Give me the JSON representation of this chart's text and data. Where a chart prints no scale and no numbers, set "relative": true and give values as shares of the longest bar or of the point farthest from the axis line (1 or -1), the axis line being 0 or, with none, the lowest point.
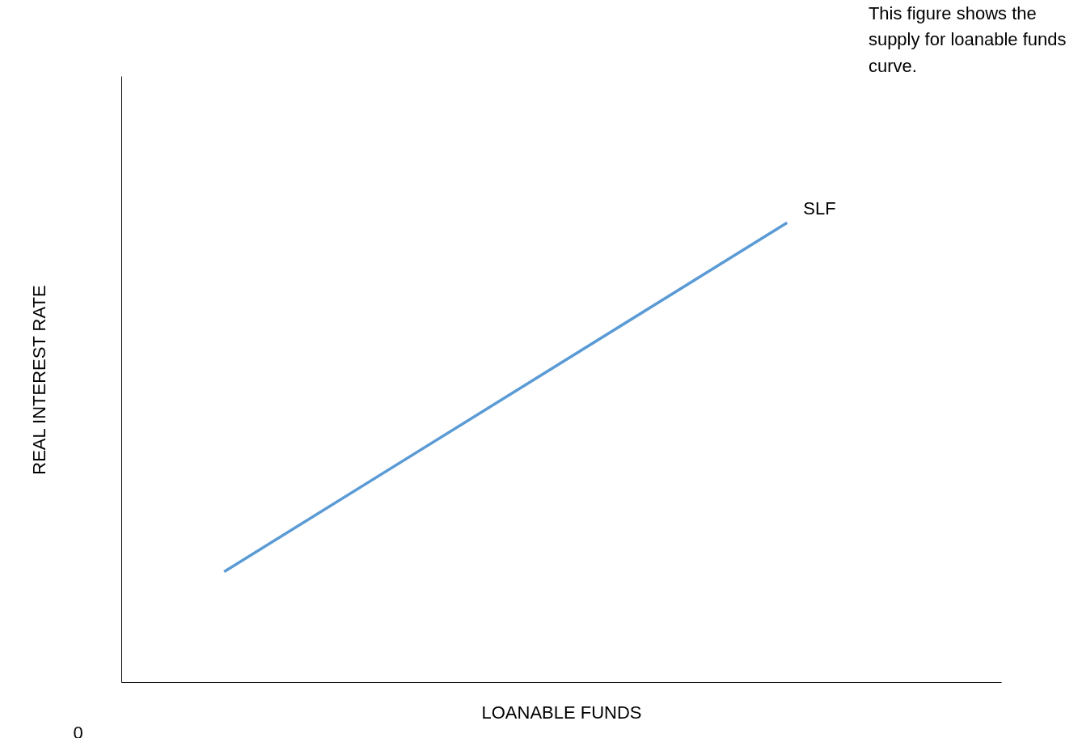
{
  "chart_data": {
    "type": "line",
    "relative": true,
    "xlabel": "LOANABLE FUNDS",
    "ylabel": "REAL INTEREST RATE",
    "categories": [
      null,
      null
    ],
    "series": [
      {
        "name": "SLF",
        "color": "#5b9bd5",
        "values": [
          0.241,
          1
        ]
      }
    ],
    "annotations": [
      "0",
      "This figure shows the supply for loanable funds curve."
    ],
    "grid": false
  }
}
